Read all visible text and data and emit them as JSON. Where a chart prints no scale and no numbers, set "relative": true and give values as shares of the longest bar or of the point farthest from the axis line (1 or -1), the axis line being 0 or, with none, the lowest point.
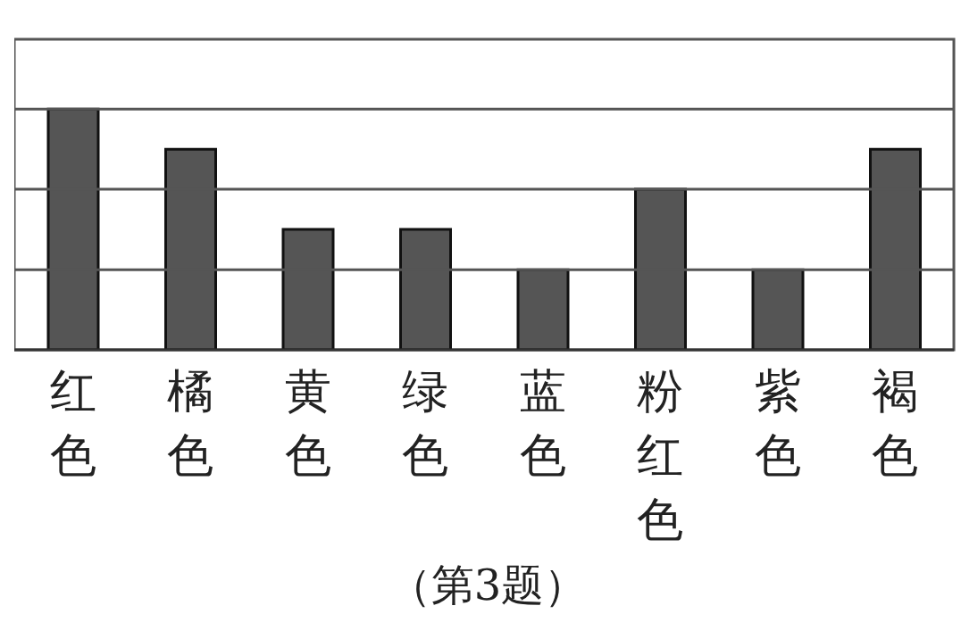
{
  "chart_data": {
    "type": "bar",
    "relative": true,
    "categories": [
      "红色",
      "橘色",
      "黄色",
      "绿色",
      "蓝色",
      "粉红色",
      "紫色",
      "褐色"
    ],
    "values": [
      1,
      0.833,
      0.5,
      0.5,
      0.333,
      0.667,
      0.333,
      0.833
    ],
    "color": "#555555",
    "ref_lines": [
      {
        "axis": "y",
        "value": 0.333,
        "color": "#555555"
      },
      {
        "axis": "y",
        "value": 0.667,
        "color": "#555555"
      },
      {
        "axis": "y",
        "value": 1,
        "color": "#555555"
      }
    ],
    "annotations": [
      "（第3题）"
    ]
  }
}
